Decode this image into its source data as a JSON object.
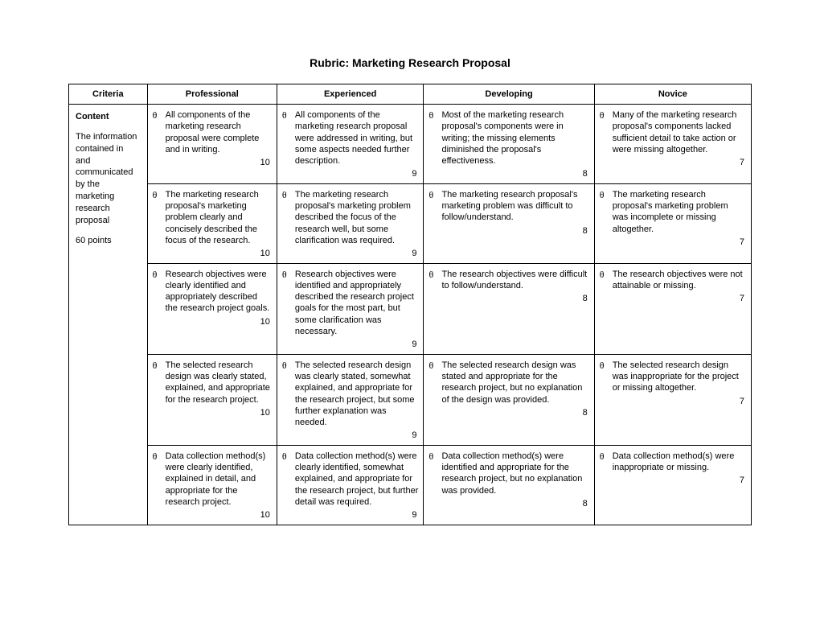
{
  "title": "Rubric: Marketing Research Proposal",
  "headers": [
    "Criteria",
    "Professional",
    "Experienced",
    "Developing",
    "Novice"
  ],
  "criteria": {
    "name": "Content",
    "description": "The information contained in and communicated by the marketing research proposal",
    "points_label": "60 points"
  },
  "rows": [
    {
      "professional": {
        "text": "All components of the marketing research proposal were complete and in writing.",
        "points": "10"
      },
      "experienced": {
        "text": "All components of the marketing research proposal were addressed in writing, but some aspects needed further description.",
        "points": "9"
      },
      "developing": {
        "text": "Most of the marketing research proposal's components were in writing; the missing elements diminished the proposal's effectiveness.",
        "points": "8"
      },
      "novice": {
        "text": "Many of the marketing research proposal's components lacked sufficient detail to take action or were missing altogether.",
        "points": "7"
      }
    },
    {
      "professional": {
        "text": "The marketing research proposal's marketing problem clearly and concisely described the focus of the research.",
        "points": "10"
      },
      "experienced": {
        "text": "The marketing research proposal's marketing problem described the focus of the research well, but some clarification was required.",
        "points": "9"
      },
      "developing": {
        "text": "The marketing research proposal's marketing problem was difficult to follow/understand.",
        "points": "8"
      },
      "novice": {
        "text": "The marketing research proposal's marketing problem was incomplete or missing altogether.",
        "points": "7"
      }
    },
    {
      "professional": {
        "text": "Research objectives were clearly identified and appropriately described the research project goals.",
        "points": "10"
      },
      "experienced": {
        "text": "Research objectives were identified and appropriately described the research project goals for the most part, but some clarification was necessary.",
        "points": "9"
      },
      "developing": {
        "text": "The research objectives were difficult to follow/understand.",
        "points": "8"
      },
      "novice": {
        "text": "The research objectives were not attainable or missing.",
        "points": "7"
      }
    },
    {
      "professional": {
        "text": "The selected research design was clearly stated, explained, and appropriate for the research project.",
        "points": "10"
      },
      "experienced": {
        "text": "The selected research design was clearly stated, somewhat explained, and appropriate for the research project, but some further explanation was needed.",
        "points": "9"
      },
      "developing": {
        "text": "The selected research design was stated and appropriate for the research project, but no explanation of the design was provided.",
        "points": "8"
      },
      "novice": {
        "text": "The selected research design was inappropriate for the project or missing altogether.",
        "points": "7"
      }
    },
    {
      "professional": {
        "text": "Data collection method(s) were clearly identified, explained in detail, and appropriate for the research project.",
        "points": "10"
      },
      "experienced": {
        "text": "Data collection method(s) were clearly identified, somewhat explained, and appropriate for the research project, but further detail was required.",
        "points": "9"
      },
      "developing": {
        "text": "Data collection method(s) were identified and appropriate for the research project, but no explanation was provided.",
        "points": "8"
      },
      "novice": {
        "text": "Data collection method(s) were inappropriate or missing.",
        "points": "7"
      }
    }
  ],
  "styling": {
    "background_color": "#ffffff",
    "text_color": "#000000",
    "border_color": "#000000",
    "bullet_char": "θ",
    "title_fontsize": 14,
    "body_fontsize": 11
  }
}
